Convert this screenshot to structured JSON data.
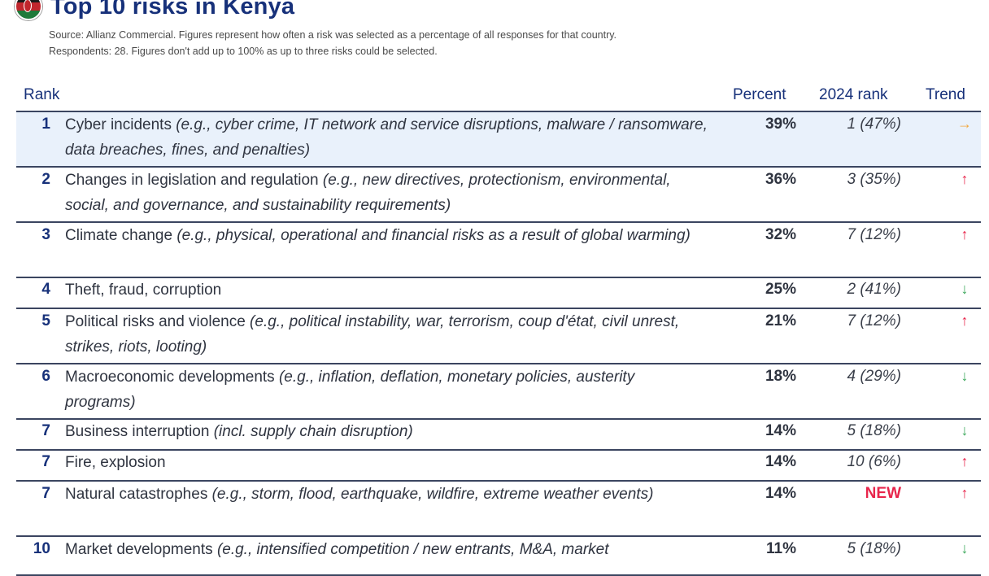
{
  "header": {
    "title": "Top 10 risks in Kenya",
    "source_line1": "Source: Allianz Commercial. Figures represent how often a risk was selected as a percentage of all responses for that country.",
    "source_line2": "Respondents: 28. Figures don't add up to 100% as up to three risks could be selected."
  },
  "columns": {
    "rank": "Rank",
    "percent": "Percent",
    "prev_rank": "2024 rank",
    "trend": "Trend"
  },
  "colors": {
    "accent": "#17317a",
    "highlight_row": "#e9f1fb",
    "trend_up": "#e8254b",
    "trend_down": "#3aa85a",
    "trend_flat": "#f2a63b"
  },
  "rows": [
    {
      "rank": "1",
      "label": "Cyber incidents",
      "example": "(e.g., cyber crime, IT network and service disruptions, malware / ransomware, data breaches, fines, and penalties)",
      "percent": "39%",
      "prev": "1 (47%)",
      "trend_icon": "arrow-right-icon",
      "trend_symbol": "→"
    },
    {
      "rank": "2",
      "label": "Changes in legislation and regulation",
      "example": "(e.g., new directives, protectionism, environmental, social, and governance, and sustainability requirements)",
      "percent": "36%",
      "prev": "3 (35%)",
      "trend_icon": "arrow-up-icon",
      "trend_symbol": "↑"
    },
    {
      "rank": "3",
      "label": "Climate change",
      "example": "(e.g., physical, operational and financial risks as a result of global warming)",
      "percent": "32%",
      "prev": "7 (12%)",
      "trend_icon": "arrow-up-icon",
      "trend_symbol": "↑"
    },
    {
      "rank": "4",
      "label": "Theft, fraud, corruption",
      "example": "",
      "percent": "25%",
      "prev": "2 (41%)",
      "trend_icon": "arrow-down-icon",
      "trend_symbol": "↓"
    },
    {
      "rank": "5",
      "label": "Political risks and violence",
      "example": "(e.g., political instability, war, terrorism, coup d'état, civil unrest, strikes, riots, looting)",
      "percent": "21%",
      "prev": "7 (12%)",
      "trend_icon": "arrow-up-icon",
      "trend_symbol": "↑"
    },
    {
      "rank": "6",
      "label": "Macroeconomic developments",
      "example": "(e.g., inflation, deflation, monetary policies, austerity programs)",
      "percent": "18%",
      "prev": "4 (29%)",
      "trend_icon": "arrow-down-icon",
      "trend_symbol": "↓"
    },
    {
      "rank": "7",
      "label": "Business interruption",
      "example": "(incl. supply chain disruption)",
      "percent": "14%",
      "prev": "5 (18%)",
      "trend_icon": "arrow-down-icon",
      "trend_symbol": "↓"
    },
    {
      "rank": "7",
      "label": "Fire, explosion",
      "example": "",
      "percent": "14%",
      "prev": "10 (6%)",
      "trend_icon": "arrow-up-icon",
      "trend_symbol": "↑"
    },
    {
      "rank": "7",
      "label": "Natural catastrophes",
      "example": "(e.g., storm, flood, earthquake, wildfire, extreme weather events)",
      "percent": "14%",
      "prev": "NEW",
      "trend_icon": "arrow-up-icon",
      "trend_symbol": "↑"
    },
    {
      "rank": "10",
      "label": "Market developments",
      "example": "(e.g., intensified competition / new entrants, M&A, market",
      "percent": "11%",
      "prev": "5 (18%)",
      "trend_icon": "arrow-down-icon",
      "trend_symbol": "↓"
    }
  ]
}
